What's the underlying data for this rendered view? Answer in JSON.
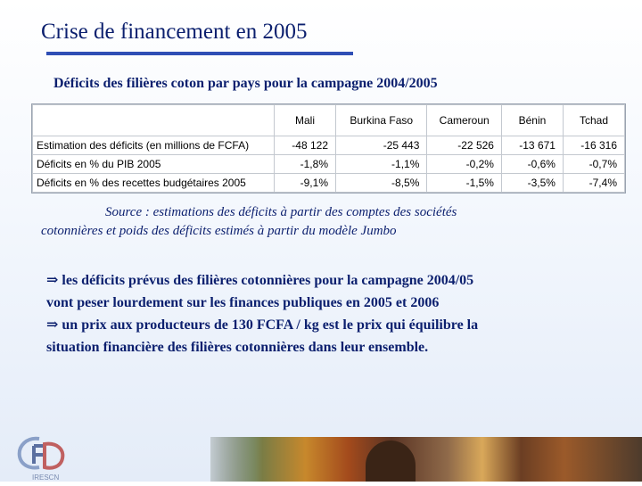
{
  "header": {
    "title": "Crise de financement en 2005",
    "subtitle": "Déficits des filières coton par pays pour la campagne 2004/2005"
  },
  "table": {
    "columns": [
      "",
      "Mali",
      "Burkina Faso",
      "Cameroun",
      "Bénin",
      "Tchad"
    ],
    "rows": [
      {
        "label": "Estimation des déficits (en millions de FCFA)",
        "values": [
          "-48 122",
          "-25 443",
          "-22 526",
          "-13 671",
          "-16 316"
        ]
      },
      {
        "label": "Déficits en % du PIB 2005",
        "values": [
          "-1,8%",
          "-1,1%",
          "-0,2%",
          "-0,6%",
          "-0,7%"
        ]
      },
      {
        "label": "Déficits en % des recettes budgétaires 2005",
        "values": [
          "-9,1%",
          "-8,5%",
          "-1,5%",
          "-3,5%",
          "-7,4%"
        ]
      }
    ]
  },
  "source": {
    "line1": "Source : estimations des déficits à partir des comptes des sociétés",
    "line2": "cotonnières et poids des déficits estimés à partir du modèle Jumbo"
  },
  "bullets": {
    "arrow_symbol": "⇒",
    "b1_line1": "les déficits prévus des filières cotonnières pour la campagne 2004/05",
    "b1_line2": "vont peser lourdement sur les finances publiques en 2005 et 2006",
    "b2_line1": "un prix aux producteurs de 130 FCFA / kg est le prix qui équilibre la",
    "b2_line2": "situation financière des filières cotonnières dans leur ensemble."
  },
  "logo": {
    "label": "IRESCN",
    "icon": "institution-logo-icon"
  },
  "colors": {
    "text_blue": "#0b1f6e",
    "rule_blue": "#2f4fb5"
  }
}
